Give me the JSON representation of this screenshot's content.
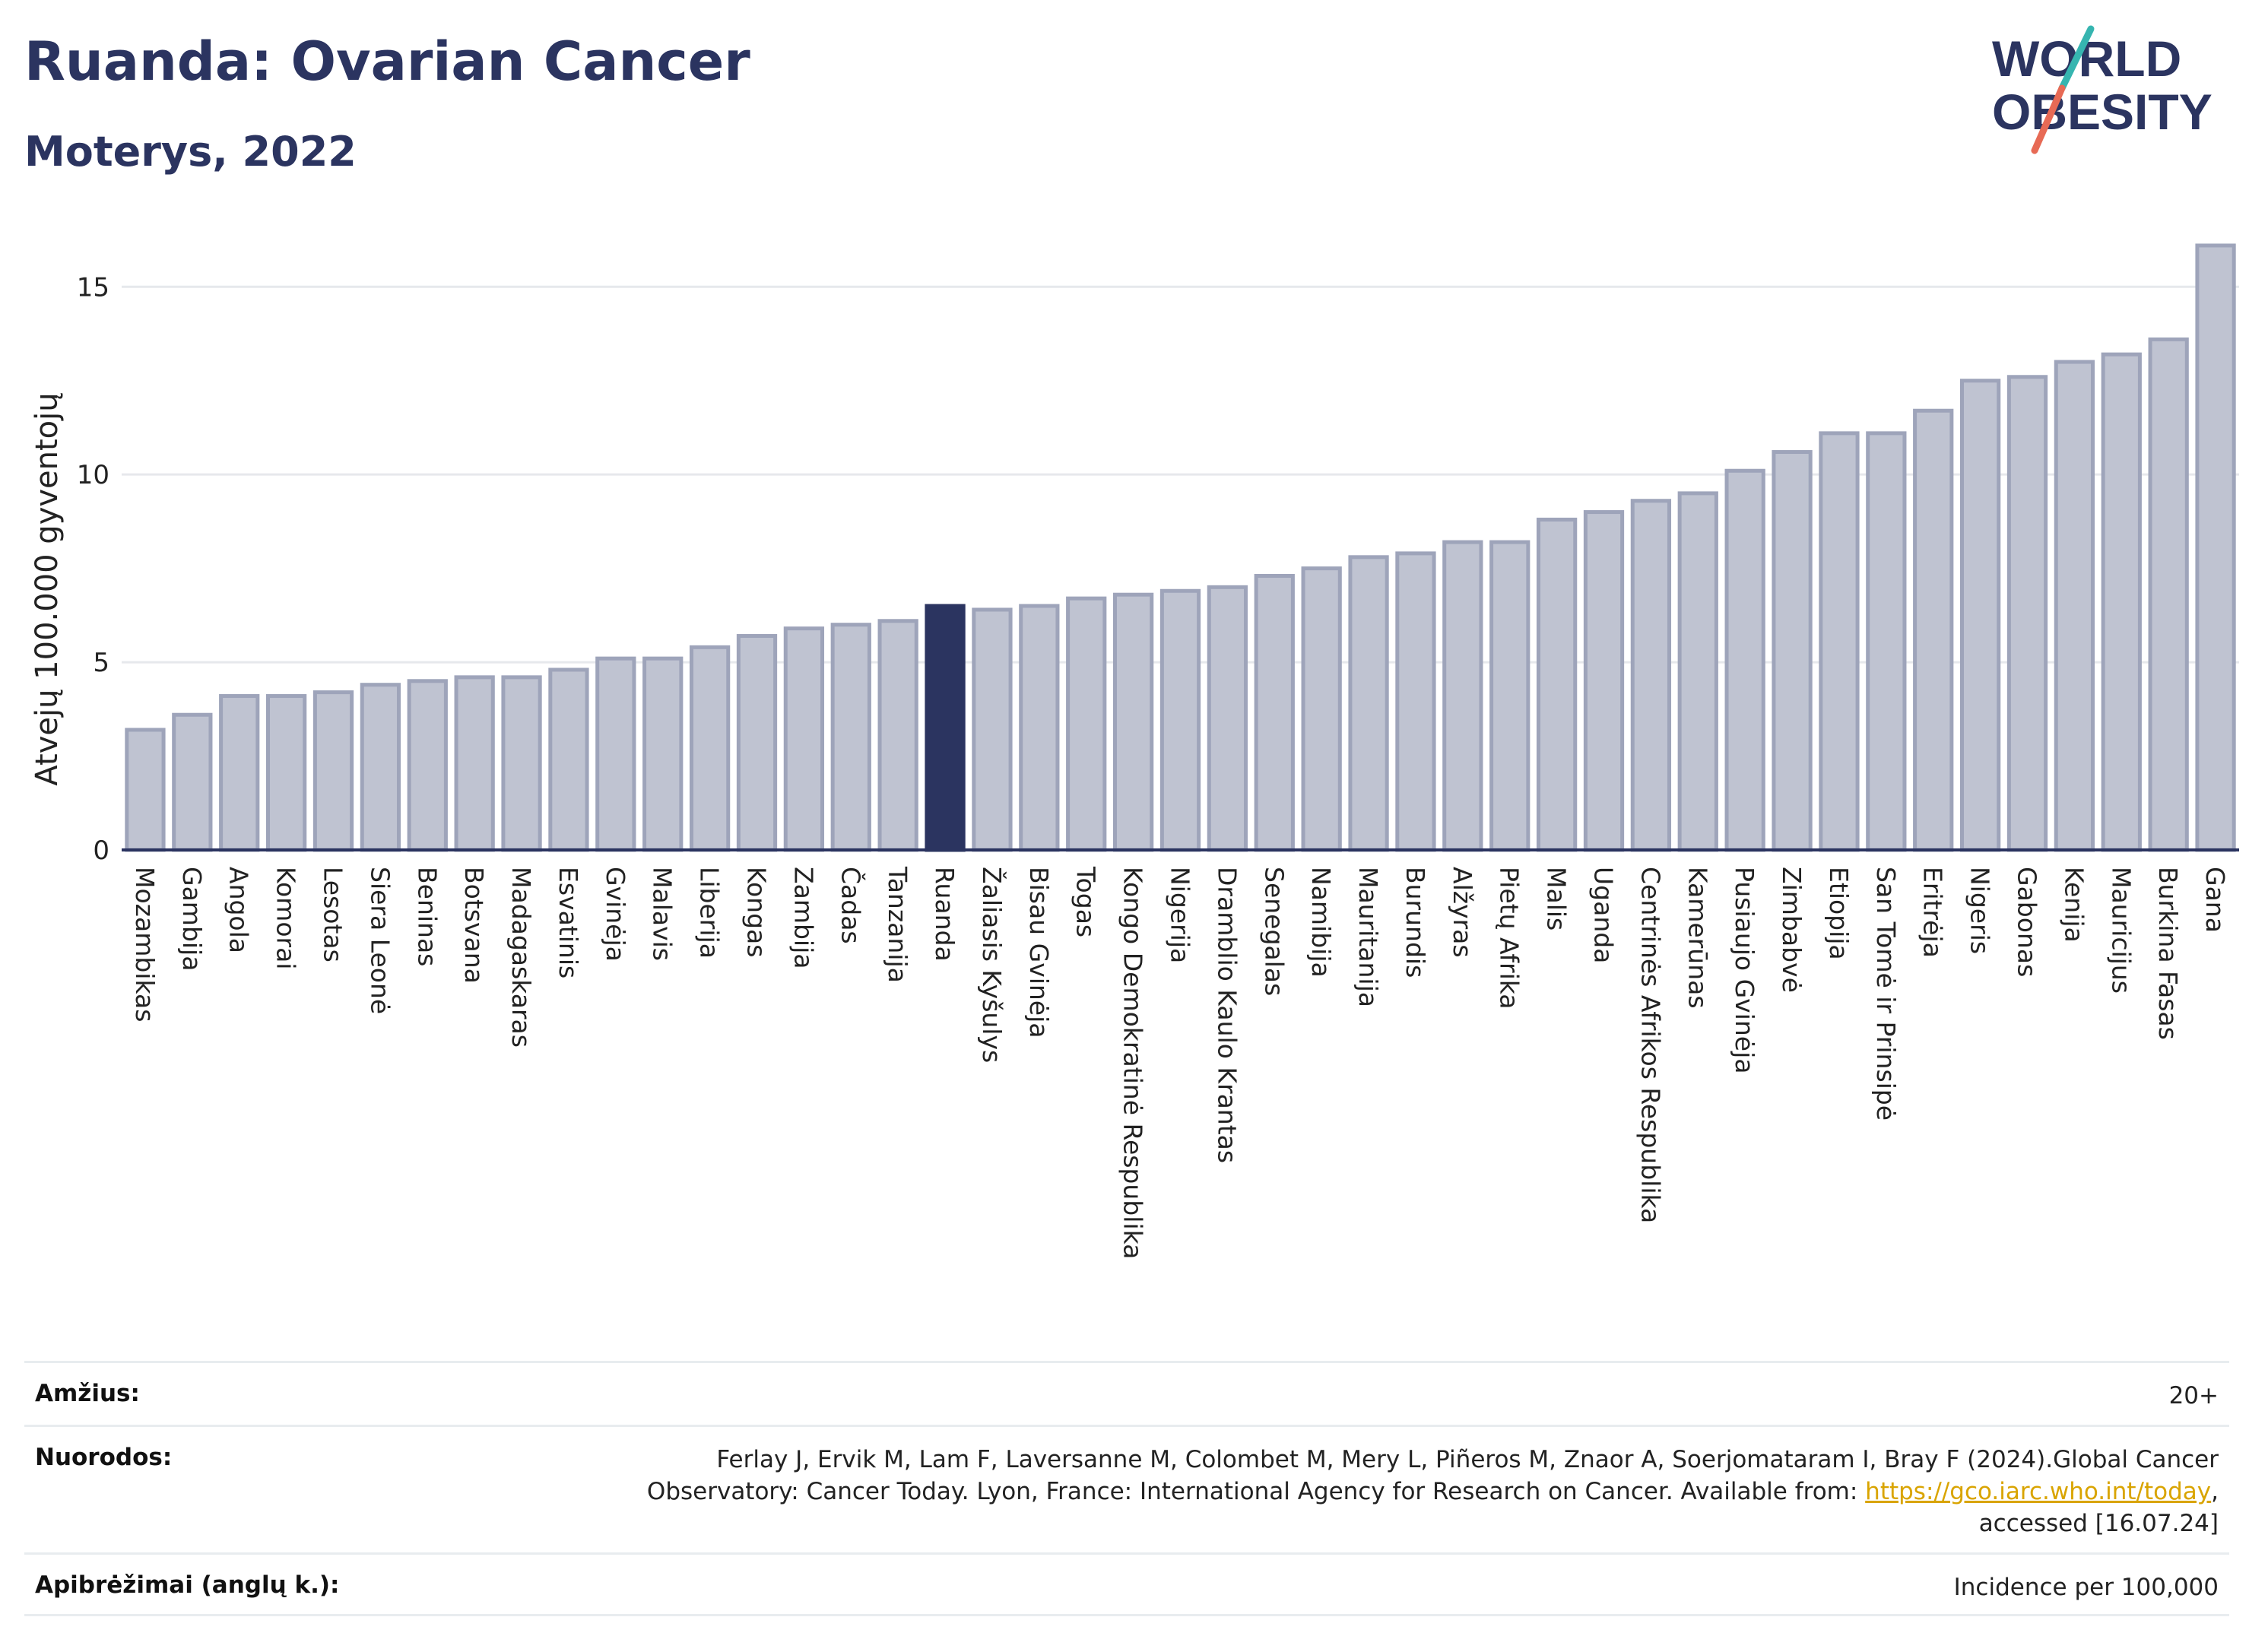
{
  "header": {
    "title": "Ruanda: Ovarian Cancer",
    "subtitle": "Moterys, 2022"
  },
  "logo": {
    "line1": "WORLD",
    "line2": "OBESITY",
    "colors": {
      "text": "#2b3460",
      "slash_teal": "#36b5b0",
      "slash_red": "#e76a55"
    }
  },
  "colors": {
    "bar": "#bfc3d1",
    "bar_stroke": "#9ea4ba",
    "highlight": "#2b3460",
    "grid": "#e6e8ec",
    "axis": "#2b3460"
  },
  "chart_data": {
    "type": "bar",
    "title": "Ruanda: Ovarian Cancer",
    "subtitle": "Moterys, 2022",
    "xlabel": "",
    "ylabel": "Atvejų 100.000 gyventojų",
    "ylim": [
      0,
      16.2
    ],
    "yticks": [
      0,
      5,
      10,
      15
    ],
    "grid": true,
    "highlight": "Ruanda",
    "categories": [
      "Mozambikas",
      "Gambija",
      "Angola",
      "Komorai",
      "Lesotas",
      "Siera Leonė",
      "Beninas",
      "Botsvana",
      "Madagaskaras",
      "Esvatinis",
      "Gvinėja",
      "Malavis",
      "Liberija",
      "Kongas",
      "Zambija",
      "Čadas",
      "Tanzanija",
      "Ruanda",
      "Žaliasis Kyšulys",
      "Bisau Gvinėja",
      "Togas",
      "Kongo Demokratinė Respublika",
      "Nigerija",
      "Dramblio Kaulo Krantas",
      "Senegalas",
      "Namibija",
      "Mauritanija",
      "Burundis",
      "Alžyras",
      "Pietų Afrika",
      "Malis",
      "Uganda",
      "Centrinės Afrikos Respublika",
      "Kamerūnas",
      "Pusiaujo Gvinėja",
      "Zimbabvė",
      "Etiopija",
      "San Tomė ir Prinsipė",
      "Eritrėja",
      "Nigeris",
      "Gabonas",
      "Kenija",
      "Mauricijus",
      "Burkina Fasas",
      "Gana"
    ],
    "values": [
      3.2,
      3.6,
      4.1,
      4.1,
      4.2,
      4.4,
      4.5,
      4.6,
      4.6,
      4.8,
      5.1,
      5.1,
      5.4,
      5.7,
      5.9,
      6.0,
      6.1,
      6.5,
      6.4,
      6.5,
      6.7,
      6.8,
      6.9,
      7.0,
      7.3,
      7.5,
      7.8,
      7.9,
      8.2,
      8.2,
      8.8,
      9.0,
      9.3,
      9.5,
      10.1,
      10.6,
      11.1,
      11.1,
      11.7,
      12.5,
      12.6,
      13.0,
      13.2,
      13.6,
      16.1
    ]
  },
  "meta": {
    "rows": [
      {
        "key": "Amžius:",
        "value": "20+"
      },
      {
        "key": "Nuorodos:",
        "value_line1": "Ferlay J, Ervik M, Lam F, Laversanne M, Colombet M, Mery L, Piñeros M, Znaor A, Soerjomataram I, Bray F (2024).Global Cancer",
        "value_line2_pre": "Observatory: Cancer Today. Lyon, France: International Agency for Research on Cancer. Available from: ",
        "link_text": "https://gco.iarc.who.int/today",
        "value_line2_post": ",",
        "value_line3": "accessed [16.07.24]"
      },
      {
        "key": "Apibrėžimai (anglų k.):",
        "value": "Incidence per 100,000"
      }
    ]
  }
}
